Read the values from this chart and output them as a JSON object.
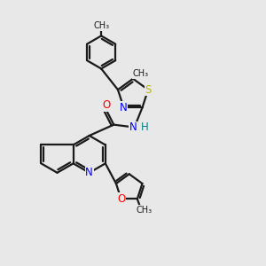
{
  "bg_color": "#e8e8e8",
  "bond_color": "#1a1a1a",
  "N_color": "#0000ff",
  "O_color": "#ff0000",
  "S_color": "#bbbb00",
  "H_color": "#008080",
  "line_width": 1.6,
  "font_size": 8.5,
  "fig_size": [
    3.0,
    3.0
  ],
  "dpi": 100,
  "xlim": [
    0,
    10
  ],
  "ylim": [
    0,
    10
  ]
}
